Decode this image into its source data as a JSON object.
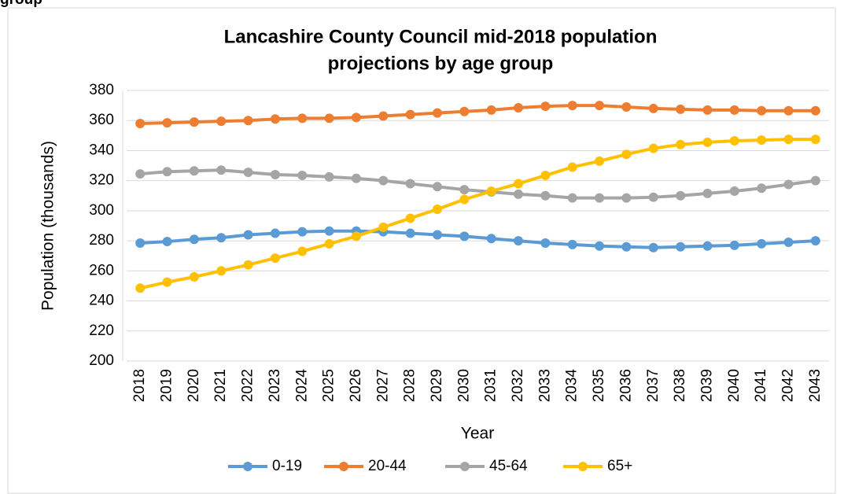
{
  "heading": "group",
  "chart_data": {
    "type": "line",
    "title": [
      "Lancashire County Council mid-2018 population",
      "projections by age group"
    ],
    "x_label": "Year",
    "y_label": "Population (thousands)",
    "categories": [
      "2018",
      "2019",
      "2020",
      "2021",
      "2022",
      "2023",
      "2024",
      "2025",
      "2026",
      "2027",
      "2028",
      "2029",
      "2030",
      "2031",
      "2032",
      "2033",
      "2034",
      "2035",
      "2036",
      "2037",
      "2038",
      "2039",
      "2040",
      "2041",
      "2042",
      "2043"
    ],
    "series": [
      {
        "name": "0-19",
        "color": "#5b9bd5",
        "values": [
          278.5,
          279.5,
          281,
          282,
          284,
          285,
          286,
          286.5,
          286.5,
          286,
          285,
          284,
          283,
          281.5,
          280,
          278.5,
          277.5,
          276.5,
          276,
          275.5,
          276,
          276.5,
          277,
          278,
          279,
          280
        ]
      },
      {
        "name": "20-44",
        "color": "#ed7d31",
        "values": [
          358,
          358.5,
          359,
          359.5,
          360,
          361,
          361.5,
          361.5,
          362,
          363,
          364,
          365,
          366,
          367,
          368.5,
          369.5,
          370,
          370,
          369,
          368,
          367.5,
          367,
          367,
          366.5,
          366.5,
          366.5
        ]
      },
      {
        "name": "45-64",
        "color": "#a5a5a5",
        "values": [
          324.5,
          326,
          326.5,
          327,
          325.5,
          324,
          323.5,
          322.5,
          321.5,
          320,
          318,
          316,
          314,
          312.5,
          311,
          310,
          308.5,
          308.5,
          308.5,
          309,
          310,
          311.5,
          313,
          315,
          317.5,
          320
        ]
      },
      {
        "name": "65+",
        "color": "#ffc000",
        "values": [
          248.5,
          252.5,
          256,
          260,
          264,
          268.5,
          273,
          278,
          283,
          289,
          295,
          301,
          307.5,
          313,
          318,
          323.5,
          329,
          333,
          337.5,
          341.5,
          344,
          345.5,
          346.5,
          347,
          347.5,
          347.5
        ]
      }
    ],
    "ylim": [
      200,
      380
    ],
    "yticks": [
      200,
      220,
      240,
      260,
      280,
      300,
      320,
      340,
      360,
      380
    ],
    "grid": true,
    "legend": "bottom"
  }
}
